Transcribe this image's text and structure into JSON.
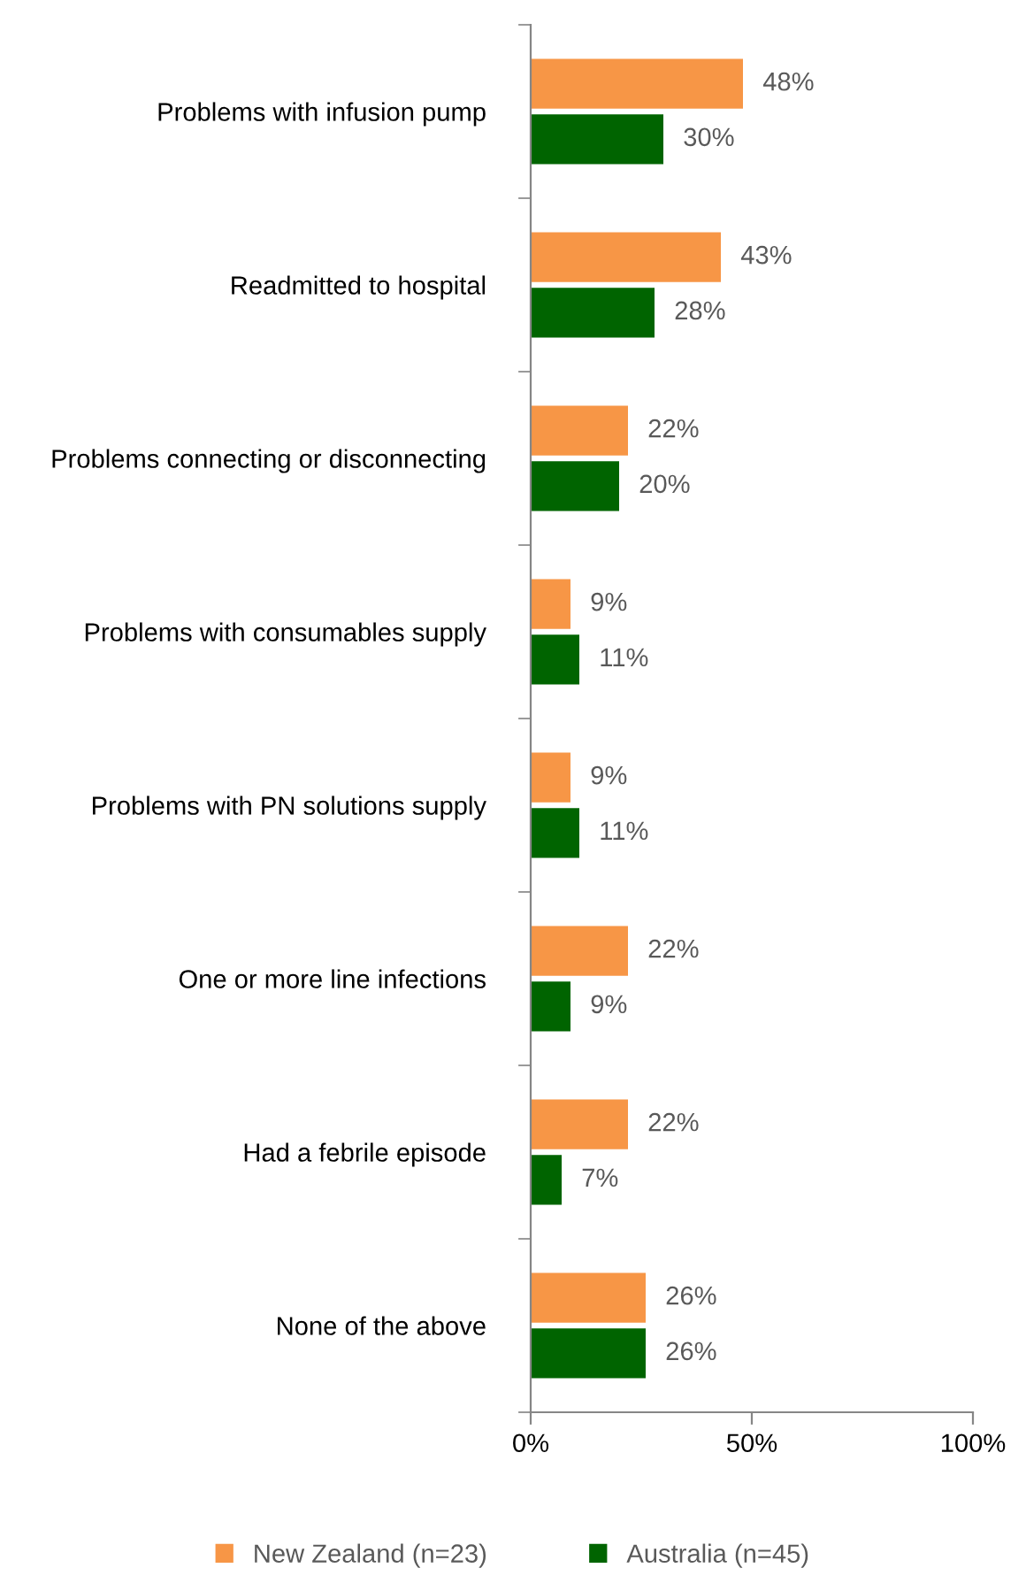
{
  "chart_data": {
    "type": "bar",
    "orientation": "horizontal",
    "categories": [
      "Problems with infusion pump",
      "Readmitted to hospital",
      "Problems connecting or disconnecting",
      "Problems with consumables supply",
      "Problems with PN solutions supply",
      "One or more line infections",
      "Had a febrile episode",
      "None of the above"
    ],
    "series": [
      {
        "name": "New Zealand (n=23)",
        "color": "#f79646",
        "values": [
          48,
          43,
          22,
          9,
          9,
          22,
          22,
          26
        ],
        "value_labels": [
          "48%",
          "43%",
          "22%",
          "9%",
          "9%",
          "22%",
          "22%",
          "26%"
        ]
      },
      {
        "name": "Australia (n=45)",
        "color": "#006400",
        "values": [
          30,
          28,
          20,
          11,
          11,
          9,
          7,
          26
        ],
        "value_labels": [
          "30%",
          "28%",
          "20%",
          "11%",
          "11%",
          "9%",
          "7%",
          "26%"
        ]
      }
    ],
    "xlim": [
      0,
      100
    ],
    "xticks": [
      {
        "value": 0,
        "label": "0%"
      },
      {
        "value": 50,
        "label": "50%"
      },
      {
        "value": 100,
        "label": "100%"
      }
    ],
    "legend": "bottom",
    "grid": false
  }
}
